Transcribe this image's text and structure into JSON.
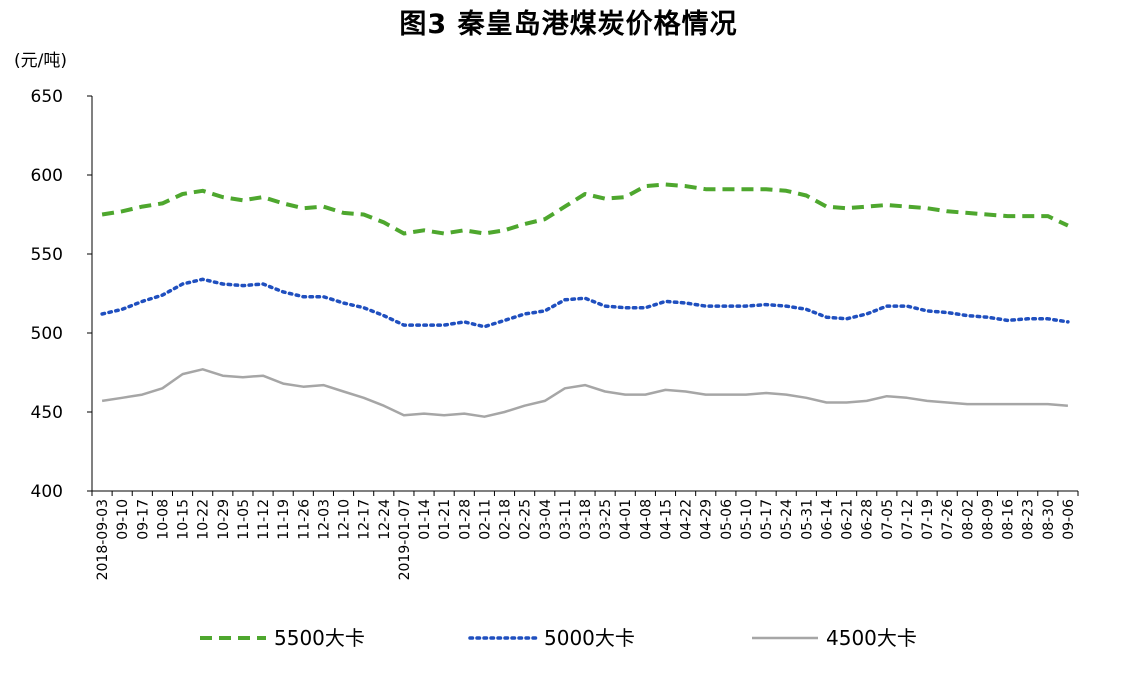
{
  "chart_data": {
    "type": "line",
    "title": "图3 秦皇岛港煤炭价格情况",
    "unit_label": "(元/吨)",
    "ylim": [
      400,
      650
    ],
    "yticks": [
      400,
      450,
      500,
      550,
      600,
      650
    ],
    "x": [
      "2018-09-03",
      "09-10",
      "09-17",
      "10-08",
      "10-15",
      "10-22",
      "10-29",
      "11-05",
      "11-12",
      "11-19",
      "11-26",
      "12-03",
      "12-10",
      "12-17",
      "12-24",
      "2019-01-07",
      "01-14",
      "01-21",
      "01-28",
      "02-11",
      "02-18",
      "02-25",
      "03-04",
      "03-11",
      "03-18",
      "03-25",
      "04-01",
      "04-08",
      "04-15",
      "04-22",
      "04-29",
      "05-06",
      "05-10",
      "05-17",
      "05-24",
      "05-31",
      "06-14",
      "06-21",
      "06-28",
      "07-05",
      "07-12",
      "07-19",
      "07-26",
      "08-02",
      "08-09",
      "08-16",
      "08-23",
      "08-30",
      "09-06"
    ],
    "xticklabels": [
      "2018-09-03",
      "09-10",
      "09-17",
      "10-08",
      "10-15",
      "10-22",
      "10-29",
      "11-05",
      "11-12",
      "11-19",
      "11-26",
      "12-03",
      "12-10",
      "12-17",
      "12-24",
      "2019-01-07",
      "01-14",
      "01-21",
      "01-28",
      "02-11",
      "02-18",
      "02-25",
      "03-04",
      "03-11",
      "03-18",
      "03-25",
      "04-01",
      "04-08",
      "04-15",
      "04-22",
      "04-29",
      "05-06",
      "05-10",
      "05-17",
      "05-24",
      "05-31",
      "06-14",
      "06-21",
      "06-28",
      "07-05",
      "07-12",
      "07-19",
      "07-26",
      "08-02",
      "08-09",
      "08-16",
      "08-23",
      "08-30",
      "09-06"
    ],
    "series": [
      {
        "name": "5500大卡",
        "color": "#4ea72e",
        "style": "dashed",
        "values": [
          575,
          577,
          580,
          582,
          588,
          590,
          586,
          584,
          586,
          582,
          579,
          580,
          576,
          575,
          570,
          563,
          565,
          563,
          565,
          563,
          565,
          569,
          572,
          580,
          588,
          585,
          586,
          593,
          594,
          593,
          591,
          591,
          591,
          591,
          590,
          587,
          580,
          579,
          580,
          581,
          580,
          579,
          577,
          576,
          575,
          574,
          574,
          574,
          568
        ]
      },
      {
        "name": "5000大卡",
        "color": "#1f4fbf",
        "style": "dotted",
        "values": [
          512,
          515,
          520,
          524,
          531,
          534,
          531,
          530,
          531,
          526,
          523,
          523,
          519,
          516,
          511,
          505,
          505,
          505,
          507,
          504,
          508,
          512,
          514,
          521,
          522,
          517,
          516,
          516,
          520,
          519,
          517,
          517,
          517,
          518,
          517,
          515,
          510,
          509,
          512,
          517,
          517,
          514,
          513,
          511,
          510,
          508,
          509,
          509,
          507
        ]
      },
      {
        "name": "4500大卡",
        "color": "#a6a6a6",
        "style": "solid",
        "values": [
          457,
          459,
          461,
          465,
          474,
          477,
          473,
          472,
          473,
          468,
          466,
          467,
          463,
          459,
          454,
          448,
          449,
          448,
          449,
          447,
          450,
          454,
          457,
          465,
          467,
          463,
          461,
          461,
          464,
          463,
          461,
          461,
          461,
          462,
          461,
          459,
          456,
          456,
          457,
          460,
          459,
          457,
          456,
          455,
          455,
          455,
          455,
          455,
          454
        ]
      }
    ],
    "legend_position": "bottom",
    "grid": false
  }
}
